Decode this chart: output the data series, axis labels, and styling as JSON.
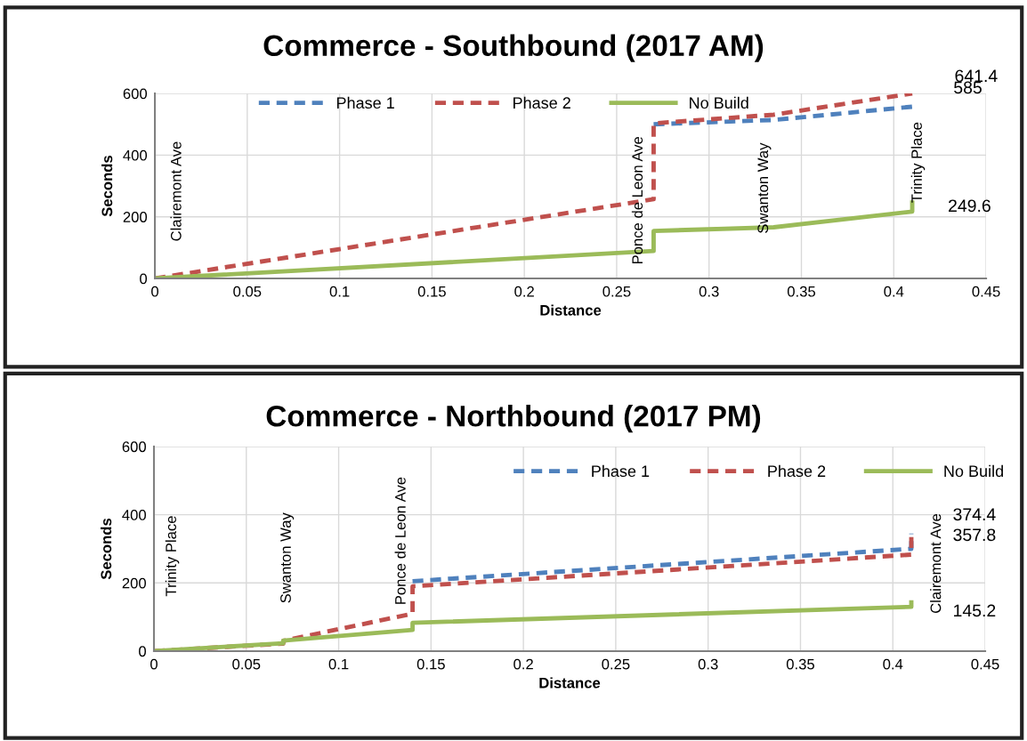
{
  "chart_data": [
    {
      "type": "line",
      "title": "Commerce - Southbound (2017 AM)",
      "xlabel": "Distance",
      "ylabel": "Seconds",
      "xlim": [
        0,
        0.45
      ],
      "xticks": [
        0,
        0.05,
        0.1,
        0.15,
        0.2,
        0.25,
        0.3,
        0.35,
        0.4,
        0.45
      ],
      "ylim": [
        0,
        600
      ],
      "yticks": [
        0,
        200,
        400,
        600
      ],
      "grid": true,
      "legend": "top",
      "marker": "none",
      "series": [
        {
          "name": "Phase 1",
          "color": "#4f81bd",
          "line_style": "dashed",
          "x": [
            0.27,
            0.335,
            0.41
          ],
          "values": [
            500,
            514,
            557
          ]
        },
        {
          "name": "Phase 2",
          "color": "#c0504d",
          "line_style": "dashed",
          "x": [
            0,
            0.27,
            0.27,
            0.335,
            0.41
          ],
          "values": [
            0,
            257,
            503,
            531,
            600
          ]
        },
        {
          "name": "No Build",
          "color": "#9bbb59",
          "line_style": "solid",
          "x": [
            0,
            0.27,
            0.27,
            0.335,
            0.41,
            0.41
          ],
          "values": [
            0,
            89,
            154,
            166,
            217,
            246
          ]
        }
      ],
      "annotations": [
        "Clairemont Ave",
        "Ponce de Leon Ave",
        "Swanton Way",
        "Trinity Place",
        "641.4",
        "585",
        "249.6"
      ]
    },
    {
      "type": "line",
      "title": "Commerce - Northbound (2017 PM)",
      "xlabel": "Distance",
      "ylabel": "Seconds",
      "xlim": [
        0,
        0.45
      ],
      "xticks": [
        0,
        0.05,
        0.1,
        0.15,
        0.2,
        0.25,
        0.3,
        0.35,
        0.4,
        0.45
      ],
      "ylim": [
        0,
        600
      ],
      "yticks": [
        0,
        200,
        400,
        600
      ],
      "grid": true,
      "legend": "top right",
      "marker": "none",
      "series": [
        {
          "name": "Phase 1",
          "color": "#4f81bd",
          "line_style": "dashed",
          "x": [
            0.14,
            0.41,
            0.41
          ],
          "values": [
            205,
            300,
            345
          ]
        },
        {
          "name": "Phase 2",
          "color": "#c0504d",
          "line_style": "dashed",
          "x": [
            0,
            0.07,
            0.07,
            0.14,
            0.14,
            0.41,
            0.41
          ],
          "values": [
            0,
            22,
            30,
            110,
            190,
            283,
            335
          ]
        },
        {
          "name": "No Build",
          "color": "#9bbb59",
          "line_style": "solid",
          "x": [
            0,
            0.07,
            0.07,
            0.14,
            0.14,
            0.41,
            0.41
          ],
          "values": [
            0,
            23,
            31,
            62,
            83,
            130,
            143
          ]
        }
      ],
      "annotations": [
        "Trinity Place",
        "Swanton Way",
        "Ponce de Leon Ave",
        "Clairemont Ave",
        "374.4",
        "357.8",
        "145.2"
      ]
    }
  ]
}
